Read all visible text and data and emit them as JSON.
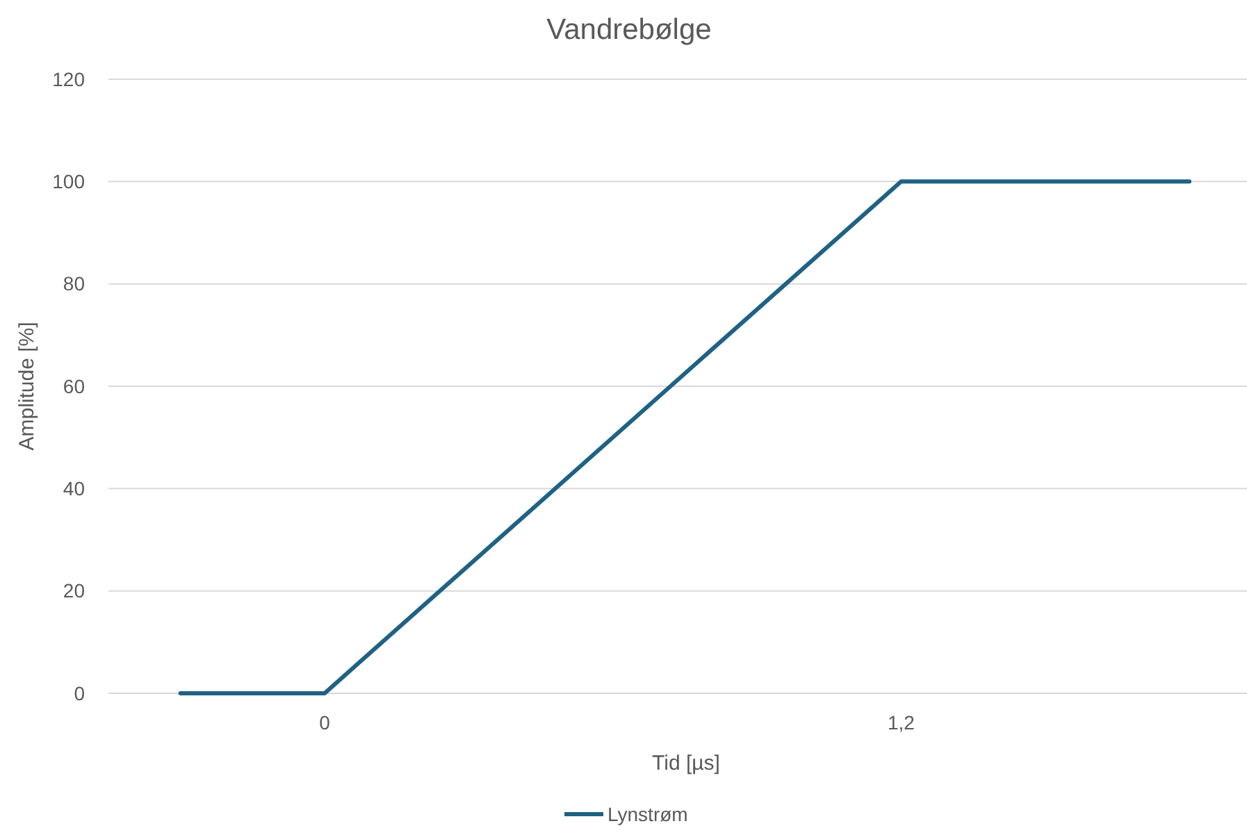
{
  "chart_data": {
    "type": "line",
    "title": "Vandrebølge",
    "xlabel": "Tid [µs]",
    "ylabel": "Amplitude  [%]",
    "x": [
      -0.3,
      0,
      1.2,
      1.8
    ],
    "series": [
      {
        "name": "Lynstrøm",
        "color": "#1f6283",
        "values": [
          0,
          0,
          100,
          100
        ]
      }
    ],
    "xlim": [
      -0.45,
      1.92
    ],
    "xticks": [
      {
        "value": 0,
        "label": "0"
      },
      {
        "value": 1.2,
        "label": "1,2"
      }
    ],
    "ylim": [
      0,
      120
    ],
    "yticks": [
      0,
      20,
      40,
      60,
      80,
      100,
      120
    ],
    "grid": "y",
    "legend": "bottom",
    "marker": "none",
    "line_style": "solid"
  }
}
